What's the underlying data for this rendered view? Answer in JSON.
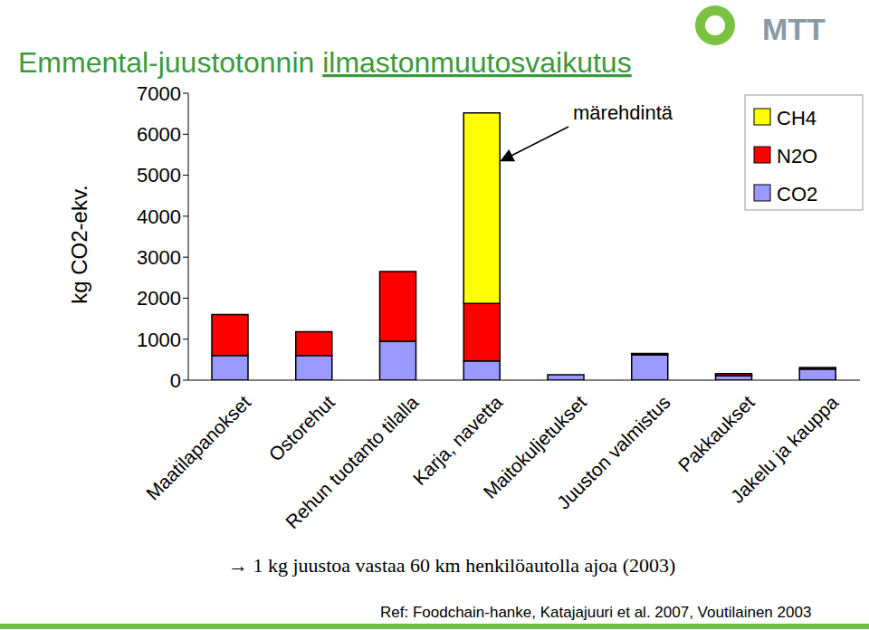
{
  "chart_data": {
    "type": "bar",
    "title": "Emmental-juustotonnin ilmastonmuutosvaikutus",
    "y_label": "kg CO2-ekv.",
    "stacked": true,
    "legend": "top-right",
    "categories": [
      "Maatilapanokset",
      "Ostorehut",
      "Rehun tuotanto tilalla",
      "Karja, navetta",
      "Maitokuljetukset",
      "Juuston valmistus",
      "Pakkaukset",
      "Jakelu ja kauppa"
    ],
    "series": [
      {
        "name": "CO2",
        "color": "#9999ff",
        "values": [
          600,
          600,
          950,
          470,
          130,
          620,
          110,
          270
        ]
      },
      {
        "name": "N2O",
        "color": "#ff0000",
        "values": [
          1000,
          580,
          1700,
          1400,
          0,
          30,
          50,
          40
        ]
      },
      {
        "name": "CH4",
        "color": "#ffff00",
        "values": [
          0,
          0,
          0,
          4650,
          0,
          0,
          0,
          0
        ]
      }
    ],
    "ylim": [
      0,
      7000
    ],
    "yticks": [
      0,
      1000,
      2000,
      3000,
      4000,
      5000,
      6000,
      7000
    ],
    "grid": false,
    "annotation": "märehdintä",
    "note": "→ 1 kg juustoa vastaa 60 km henkilöautolla ajoa (2003)",
    "source": "Ref: Foodchain-hanke, Katajajuuri et al. 2007, Voutilainen 2003",
    "logo": "MTT"
  }
}
